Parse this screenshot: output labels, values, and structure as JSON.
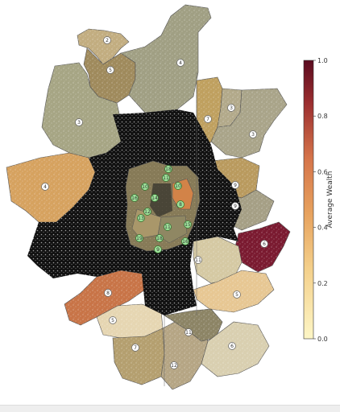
{
  "colorbar": {
    "title": "Average Wealth",
    "ticks": [
      "1.0",
      "0.8",
      "0.6",
      "0.4",
      "0.2",
      "0.0"
    ],
    "colors": {
      "high": "#5a0b1f",
      "mid": "#d5744a",
      "low": "#fdf6c6"
    }
  },
  "regions": [
    {
      "id": "r-nw-top",
      "fill": "#c2ad80",
      "label": "2"
    },
    {
      "id": "r-nw-mid",
      "fill": "#9f8a5c",
      "label": "5"
    },
    {
      "id": "r-north",
      "fill": "#a09f83",
      "label": "4"
    },
    {
      "id": "r-west",
      "fill": "#a6a584",
      "label": "3"
    },
    {
      "id": "r-far-west",
      "fill": "#d6a25f",
      "label": "4"
    },
    {
      "id": "r-ne-1",
      "fill": "#bfa05f",
      "label": "7"
    },
    {
      "id": "r-ne-2",
      "fill": "#b2a98a",
      "label": "3"
    },
    {
      "id": "r-ne-3",
      "fill": "#a9a489",
      "label": "3"
    },
    {
      "id": "r-east-1",
      "fill": "#b99a5e",
      "label": "9"
    },
    {
      "id": "r-east-2",
      "fill": "#a59f85",
      "label": "9"
    },
    {
      "id": "r-east-hot",
      "fill": "#7a1a30",
      "label": "6"
    },
    {
      "id": "r-se-1",
      "fill": "#d5c9a3",
      "label": "11"
    },
    {
      "id": "r-se-2",
      "fill": "#e7c793",
      "label": "5"
    },
    {
      "id": "r-sw-hot",
      "fill": "#c87447",
      "label": "8"
    },
    {
      "id": "r-sw-2",
      "fill": "#e6d6b2",
      "label": "5"
    },
    {
      "id": "r-south-1",
      "fill": "#b49f6f",
      "label": "7"
    },
    {
      "id": "r-south-2",
      "fill": "#b5a584",
      "label": "12"
    },
    {
      "id": "r-south-3",
      "fill": "#8c8465",
      "label": "11"
    },
    {
      "id": "r-south-4",
      "fill": "#d9cfb0",
      "label": "6"
    }
  ],
  "center_labels": [
    "18",
    "10",
    "11",
    "16",
    "12",
    "14",
    "10",
    "8",
    "13",
    "19",
    "18",
    "15",
    "16",
    "11",
    "9"
  ]
}
